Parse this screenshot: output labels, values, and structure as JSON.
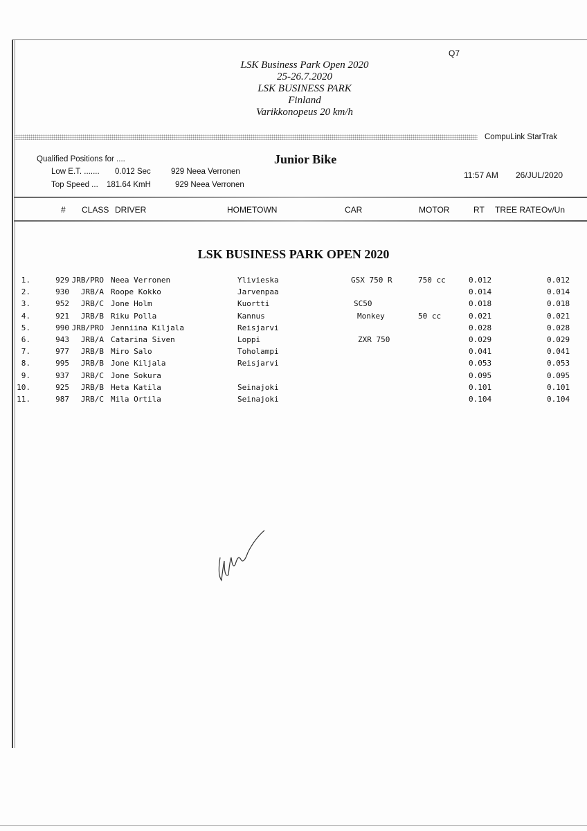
{
  "header": {
    "code": "Q7",
    "lines": [
      "LSK Business Park Open 2020",
      "25-26.7.2020",
      "LSK BUSINESS PARK",
      "Finland",
      "Varikkonopeus 20 km/h"
    ],
    "brand": "CompuLink  StarTrak"
  },
  "summary": {
    "qualified": "Qualified Positions for ....",
    "class_title": "Junior Bike",
    "low_et_label": "Low E.T. .......",
    "low_et_value": "0.012  Sec",
    "low_et_driver": "929   Neea Verronen",
    "top_speed_label": "Top Speed ...",
    "top_speed_value": "181.64  KmH",
    "top_speed_driver": "929   Neea Verronen",
    "time": "11:57 AM",
    "date": "26/JUL/2020"
  },
  "columns": [
    "#",
    "CLASS",
    "DRIVER",
    "HOMETOWN",
    "CAR",
    "MOTOR",
    "RT",
    "TREE RATE",
    "Ov/Un"
  ],
  "event_title": "LSK BUSINESS PARK OPEN 2020",
  "rows": [
    {
      "pos": "1.",
      "num": "929",
      "cls": "JRB/PRO",
      "driver": "Neea Verronen",
      "town": "Ylivieska",
      "car": "GSX 750 R",
      "motor": "750 cc",
      "rt": "0.012",
      "ovun": "0.012"
    },
    {
      "pos": "2.",
      "num": "930",
      "cls": "JRB/A",
      "driver": "Roope Kokko",
      "town": "Jarvenpaa",
      "car": "",
      "motor": "",
      "rt": "0.014",
      "ovun": "0.014"
    },
    {
      "pos": "3.",
      "num": "952",
      "cls": "JRB/C",
      "driver": "Jone Holm",
      "town": "Kuortti",
      "car": "SC50",
      "motor": "",
      "rt": "0.018",
      "ovun": "0.018"
    },
    {
      "pos": "4.",
      "num": "921",
      "cls": "JRB/B",
      "driver": "Riku Polla",
      "town": "Kannus",
      "car": "Monkey",
      "motor": "50 cc",
      "rt": "0.021",
      "ovun": "0.021"
    },
    {
      "pos": "5.",
      "num": "990",
      "cls": "JRB/PRO",
      "driver": "Jenniina Kiljala",
      "town": "Reisjarvi",
      "car": "",
      "motor": "",
      "rt": "0.028",
      "ovun": "0.028"
    },
    {
      "pos": "6.",
      "num": "943",
      "cls": "JRB/A",
      "driver": "Catarina Siven",
      "town": "Loppi",
      "car": "ZXR 750",
      "motor": "",
      "rt": "0.029",
      "ovun": "0.029"
    },
    {
      "pos": "7.",
      "num": "977",
      "cls": "JRB/B",
      "driver": "Miro Salo",
      "town": "Toholampi",
      "car": "",
      "motor": "",
      "rt": "0.041",
      "ovun": "0.041"
    },
    {
      "pos": "8.",
      "num": "995",
      "cls": "JRB/B",
      "driver": "Jone Kiljala",
      "town": "Reisjarvi",
      "car": "",
      "motor": "",
      "rt": "0.053",
      "ovun": "0.053"
    },
    {
      "pos": "9.",
      "num": "937",
      "cls": "JRB/C",
      "driver": "Jone Sokura",
      "town": "",
      "car": "",
      "motor": "",
      "rt": "0.095",
      "ovun": "0.095"
    },
    {
      "pos": "10.",
      "num": "925",
      "cls": "JRB/B",
      "driver": "Heta Katila",
      "town": "Seinajoki",
      "car": "",
      "motor": "",
      "rt": "0.101",
      "ovun": "0.101"
    },
    {
      "pos": "11.",
      "num": "987",
      "cls": "JRB/C",
      "driver": "Mila Ortila",
      "town": "Seinajoki",
      "car": "",
      "motor": "",
      "rt": "0.104",
      "ovun": "0.104"
    }
  ]
}
